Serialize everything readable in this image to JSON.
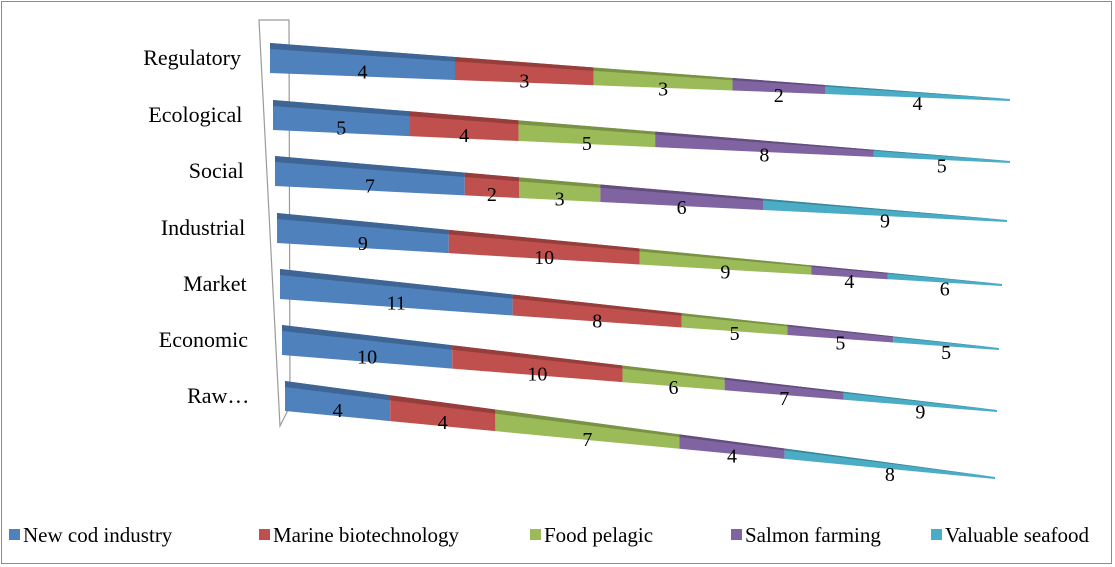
{
  "chart_data": {
    "type": "bar",
    "orientation": "horizontal",
    "stacked": true,
    "style": "3d-perspective-cone",
    "title": "",
    "xlabel": "",
    "ylabel": "",
    "categories": [
      "Regulatory",
      "Ecological",
      "Social",
      "Industrial",
      "Market",
      "Economic",
      "Raw…"
    ],
    "series": [
      {
        "name": "New cod industry",
        "color": "#4f81bd",
        "values": [
          4,
          5,
          7,
          9,
          11,
          10,
          4
        ]
      },
      {
        "name": "Marine biotechnology",
        "color": "#c0504d",
        "values": [
          3,
          4,
          2,
          10,
          8,
          10,
          4
        ]
      },
      {
        "name": "Food pelagic",
        "color": "#9bbb59",
        "values": [
          3,
          5,
          3,
          9,
          5,
          6,
          7
        ]
      },
      {
        "name": "Salmon farming",
        "color": "#8064a2",
        "values": [
          2,
          8,
          6,
          4,
          5,
          7,
          4
        ]
      },
      {
        "name": "Valuable seafood",
        "color": "#4bacc6",
        "values": [
          4,
          5,
          9,
          6,
          5,
          9,
          8
        ]
      }
    ],
    "legend_position": "bottom",
    "grid": false
  }
}
